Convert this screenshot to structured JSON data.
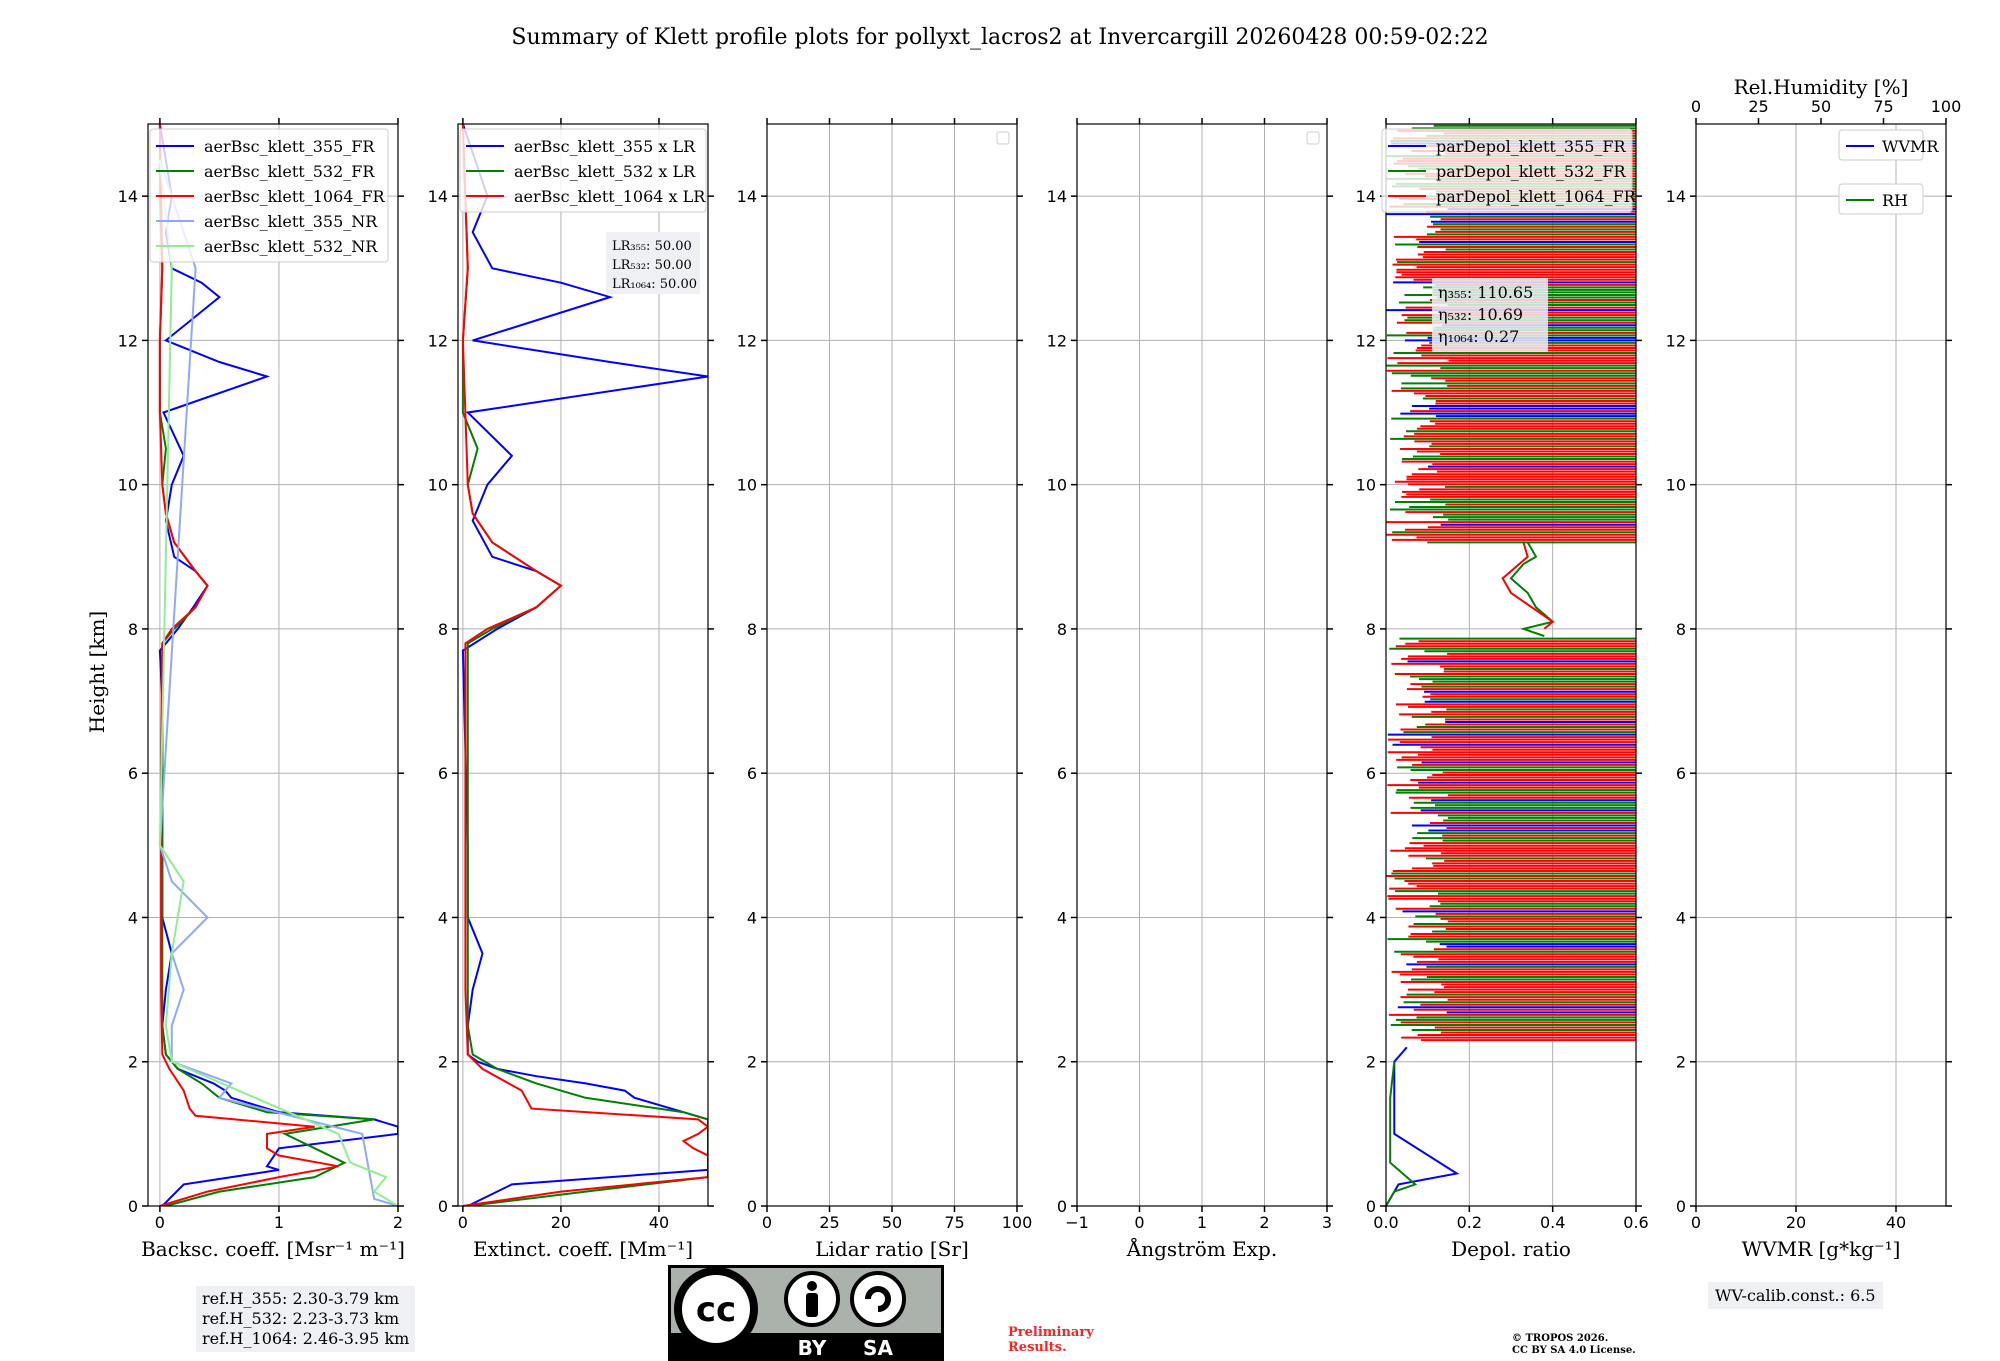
{
  "title": "Summary of Klett profile plots for pollyxt_lacros2 at Invercargill 20260428 00:59-02:22",
  "ylabel": "Height [km]",
  "colors": {
    "c355": "#0000ff",
    "c532": "#008000",
    "c1064": "#ff0000",
    "c355nr": "#8fa8ff",
    "c532nr": "#90ee90"
  },
  "chart_data": [
    {
      "id": "bsc",
      "type": "line",
      "xlabel": "Backsc. coeff. [Msr⁻¹ m⁻¹]",
      "xlim": [
        -0.1,
        2
      ],
      "ylim": [
        0,
        15
      ],
      "xticks": [
        0,
        1,
        2
      ],
      "tick_labels": [
        "0",
        "1",
        "2"
      ],
      "legend": [
        "aerBsc_klett_355_FR",
        "aerBsc_klett_532_FR",
        "aerBsc_klett_1064_FR",
        "aerBsc_klett_355_NR",
        "aerBsc_klett_532_NR"
      ],
      "series": [
        {
          "name": "aerBsc_klett_355_FR",
          "color": "c355",
          "h": [
            0,
            0.3,
            0.5,
            0.55,
            0.8,
            1.0,
            1.1,
            1.2,
            1.3,
            1.5,
            1.6,
            1.7,
            1.8,
            1.9,
            2.0,
            2.1,
            2.5,
            3.0,
            3.5,
            4.0,
            5.0,
            6.0,
            7.0,
            7.7,
            7.8,
            8.0,
            8.3,
            8.6,
            8.8,
            9.0,
            9.5,
            10.0,
            10.4,
            11.0,
            11.5,
            11.7,
            12.0,
            12.6,
            12.8,
            13.0,
            13.5,
            14.0,
            15.0
          ],
          "v": [
            0.02,
            0.2,
            1.0,
            0.9,
            1.0,
            2.0,
            2.0,
            1.8,
            1.0,
            0.6,
            0.55,
            0.45,
            0.3,
            0.15,
            0.1,
            0.05,
            0.02,
            0.05,
            0.1,
            0.02,
            0.02,
            0.02,
            0.02,
            0.0,
            0.05,
            0.15,
            0.28,
            0.4,
            0.3,
            0.12,
            0.05,
            0.1,
            0.2,
            0.03,
            0.9,
            0.5,
            0.05,
            0.5,
            0.35,
            0.1,
            0.05,
            0.1,
            0.0
          ]
        },
        {
          "name": "aerBsc_klett_532_FR",
          "color": "c532",
          "h": [
            0,
            0.2,
            0.4,
            0.6,
            0.8,
            1.0,
            1.2,
            1.3,
            1.5,
            1.7,
            1.9,
            2.1,
            2.5,
            4.0,
            6.0,
            7.8,
            8.0,
            8.3,
            8.6,
            8.8,
            9.2,
            9.6,
            10.0,
            10.5,
            11.0,
            12.0,
            13.0,
            14.0,
            15.0
          ],
          "v": [
            0.05,
            0.5,
            1.3,
            1.55,
            1.3,
            1.05,
            1.8,
            0.9,
            0.5,
            0.35,
            0.15,
            0.05,
            0.02,
            0.02,
            0.02,
            0.02,
            0.12,
            0.3,
            0.4,
            0.3,
            0.12,
            0.05,
            0.02,
            0.05,
            0.0,
            0.0,
            0.02,
            0.0,
            0.0
          ]
        },
        {
          "name": "aerBsc_klett_1064_FR",
          "color": "c1064",
          "h": [
            0,
            0.2,
            0.4,
            0.55,
            0.7,
            0.8,
            0.9,
            1.0,
            1.1,
            1.25,
            1.35,
            1.6,
            1.9,
            2.1,
            3.0,
            6.0,
            7.8,
            8.0,
            8.3,
            8.6,
            8.8,
            9.2,
            9.6,
            10.0,
            11.0,
            12.0,
            13.0,
            15.0
          ],
          "v": [
            0.0,
            0.4,
            1.0,
            1.5,
            1.0,
            0.9,
            0.9,
            0.9,
            1.3,
            0.3,
            0.25,
            0.2,
            0.08,
            0.02,
            0.01,
            0.01,
            0.02,
            0.1,
            0.3,
            0.4,
            0.3,
            0.12,
            0.05,
            0.02,
            0.0,
            0.0,
            0.02,
            0.0
          ]
        },
        {
          "name": "aerBsc_klett_355_NR",
          "color": "c355nr",
          "h": [
            0,
            0.1,
            1.0,
            1.5,
            1.7,
            2.0,
            2.5,
            3.0,
            3.5,
            4.0,
            4.5,
            5.0,
            13.0,
            13.5,
            14.0,
            14.5
          ],
          "v": [
            2.0,
            1.8,
            1.7,
            0.5,
            0.6,
            0.1,
            0.1,
            0.2,
            0.1,
            0.4,
            0.1,
            0.0,
            0.3,
            0.2,
            0.1,
            0.0
          ]
        },
        {
          "name": "aerBsc_klett_532_NR",
          "color": "c532nr",
          "h": [
            0,
            0.2,
            0.4,
            0.6,
            1.0,
            2.0,
            2.5,
            3.5,
            4.5,
            5.0,
            13.0,
            14.5
          ],
          "v": [
            2.0,
            1.8,
            1.9,
            1.6,
            1.5,
            0.1,
            0.05,
            0.1,
            0.2,
            0.0,
            0.1,
            0.0
          ]
        }
      ],
      "footer": [
        "ref.H_355: 2.30-3.79 km",
        "ref.H_532: 2.23-3.73 km",
        "ref.H_1064: 2.46-3.95 km"
      ]
    },
    {
      "id": "ext",
      "type": "line",
      "xlabel": "Extinct. coeff. [Mm⁻¹]",
      "xlim": [
        -1,
        50
      ],
      "ylim": [
        0,
        15
      ],
      "xticks": [
        0,
        20,
        40
      ],
      "tick_labels": [
        "0",
        "20",
        "40"
      ],
      "legend": [
        "aerBsc_klett_355 x LR",
        "aerBsc_klett_532 x LR",
        "aerBsc_klett_1064 x LR"
      ],
      "annotation": [
        "LR₃₅₅: 50.00",
        "LR₅₃₂: 50.00",
        "LR₁₀₆₄: 50.00"
      ],
      "series": [
        {
          "name": "aerBsc_klett_355 x LR",
          "color": "c355",
          "h": [
            0,
            0.3,
            0.5,
            0.6,
            0.8,
            1.0,
            1.2,
            1.3,
            1.5,
            1.6,
            1.7,
            1.8,
            1.9,
            2.0,
            2.1,
            2.5,
            3.0,
            3.5,
            4.0,
            5.0,
            7.7,
            8.0,
            8.3,
            8.6,
            8.8,
            9.0,
            9.5,
            10.0,
            10.4,
            11.0,
            11.5,
            11.7,
            12.0,
            12.6,
            12.8,
            13.0,
            13.5,
            14.0,
            15.0
          ],
          "v": [
            1,
            10,
            50,
            50,
            50,
            50,
            50,
            45,
            35,
            33,
            25,
            15,
            7,
            3,
            1,
            1,
            2,
            4,
            1,
            1,
            0,
            7,
            15,
            20,
            15,
            6,
            2,
            5,
            10,
            1,
            50,
            30,
            2,
            30,
            20,
            6,
            2,
            5,
            0
          ]
        },
        {
          "name": "aerBsc_klett_532 x LR",
          "color": "c532",
          "h": [
            0,
            0.2,
            0.4,
            0.6,
            0.8,
            1.0,
            1.2,
            1.3,
            1.5,
            1.7,
            1.9,
            2.1,
            2.5,
            6.0,
            7.8,
            8.0,
            8.3,
            8.6,
            8.8,
            9.2,
            9.6,
            10.0,
            10.5,
            11.0,
            12.0,
            13.0,
            15.0
          ],
          "v": [
            1,
            25,
            50,
            50,
            50,
            50,
            50,
            45,
            25,
            15,
            7,
            2,
            1,
            1,
            1,
            6,
            15,
            20,
            15,
            6,
            2,
            1,
            3,
            0,
            0,
            1,
            0
          ]
        },
        {
          "name": "aerBsc_klett_1064 x LR",
          "color": "c1064",
          "h": [
            0,
            0.2,
            0.4,
            0.5,
            0.7,
            0.8,
            0.9,
            1.0,
            1.1,
            1.2,
            1.35,
            1.6,
            1.9,
            2.1,
            3.0,
            7.8,
            8.0,
            8.3,
            8.6,
            8.8,
            9.2,
            9.6,
            10.0,
            12.0,
            13.0,
            15.0
          ],
          "v": [
            0,
            20,
            50,
            50,
            50,
            47,
            45,
            48,
            50,
            48,
            14,
            12,
            4,
            1,
            0.5,
            0.5,
            5,
            15,
            20,
            15,
            6,
            2,
            1,
            0,
            1,
            0
          ]
        }
      ]
    },
    {
      "id": "lr",
      "type": "line",
      "xlabel": "Lidar ratio [Sr]",
      "xlim": [
        0,
        100
      ],
      "ylim": [
        0,
        15
      ],
      "xticks": [
        0,
        25,
        50,
        75,
        100
      ],
      "tick_labels": [
        "0",
        "25",
        "50",
        "75",
        "100"
      ],
      "series": []
    },
    {
      "id": "ae",
      "type": "line",
      "xlabel": "Ångström Exp.",
      "xlim": [
        -1,
        3
      ],
      "ylim": [
        0,
        15
      ],
      "xticks": [
        -1,
        0,
        1,
        2,
        3
      ],
      "tick_labels": [
        "−1",
        "0",
        "1",
        "2",
        "3"
      ],
      "series": []
    },
    {
      "id": "dep",
      "type": "line",
      "xlabel": "Depol. ratio",
      "xlim": [
        0,
        0.6
      ],
      "ylim": [
        0,
        15
      ],
      "xticks": [
        0,
        0.2,
        0.4,
        0.6
      ],
      "tick_labels": [
        "0.0",
        "0.2",
        "0.4",
        "0.6"
      ],
      "legend": [
        "parDepol_klett_355_FR",
        "parDepol_klett_532_FR",
        "parDepol_klett_1064_FR"
      ],
      "annotation": [
        "η₃₅₅: 110.65",
        "η₅₃₂: 10.69",
        "η₁₀₆₄: 0.27"
      ],
      "series": [
        {
          "name": "parDepol_klett_355_FR",
          "color": "c355",
          "h": [
            0,
            0.3,
            0.45,
            1.0,
            1.5,
            2.0,
            2.2
          ],
          "v": [
            0.0,
            0.03,
            0.17,
            0.02,
            0.02,
            0.02,
            0.05
          ]
        },
        {
          "name": "parDepol_klett_532_FR",
          "color": "c532",
          "h": [
            0,
            0.2,
            0.3,
            0.6,
            1.0,
            1.5,
            2.0
          ],
          "v": [
            0.0,
            0.02,
            0.07,
            0.01,
            0.01,
            0.01,
            0.02
          ]
        },
        {
          "name": "parDepol_klett_532_FR",
          "color": "c532",
          "h": [
            7.9,
            8.0,
            8.1,
            8.3,
            8.5,
            8.7,
            8.9,
            9.0,
            9.2
          ],
          "v": [
            0.38,
            0.33,
            0.4,
            0.36,
            0.34,
            0.3,
            0.33,
            0.36,
            0.34
          ]
        },
        {
          "name": "parDepol_klett_1064_FR",
          "color": "c1064",
          "h": [
            8.0,
            8.1,
            8.3,
            8.5,
            8.7,
            8.9,
            9.0,
            9.2
          ],
          "v": [
            0.38,
            0.4,
            0.35,
            0.3,
            0.28,
            0.32,
            0.34,
            0.33
          ]
        }
      ]
    },
    {
      "id": "wv",
      "type": "line",
      "xlabel": "WVMR [g*kg⁻¹]",
      "top_label": "Rel.Humidity [%]",
      "xlim": [
        0,
        50
      ],
      "ylim": [
        0,
        15
      ],
      "xticks": [
        0,
        20,
        40
      ],
      "tick_labels": [
        "0",
        "20",
        "40"
      ],
      "top_ticks": [
        "0",
        "25",
        "50",
        "75",
        "100"
      ],
      "legend": [
        "WVMR",
        "RH"
      ],
      "series": [],
      "footer": [
        "WV-calib.const.: 6.5"
      ]
    }
  ],
  "yticks": [
    "0",
    "2",
    "4",
    "6",
    "8",
    "10",
    "12",
    "14"
  ],
  "license": {
    "by": "BY",
    "sa": "SA",
    "cc": "cc"
  },
  "preliminary": [
    "Preliminary",
    "Results."
  ],
  "copyright": [
    "© TROPOS 2026.",
    "CC BY SA 4.0 License."
  ]
}
